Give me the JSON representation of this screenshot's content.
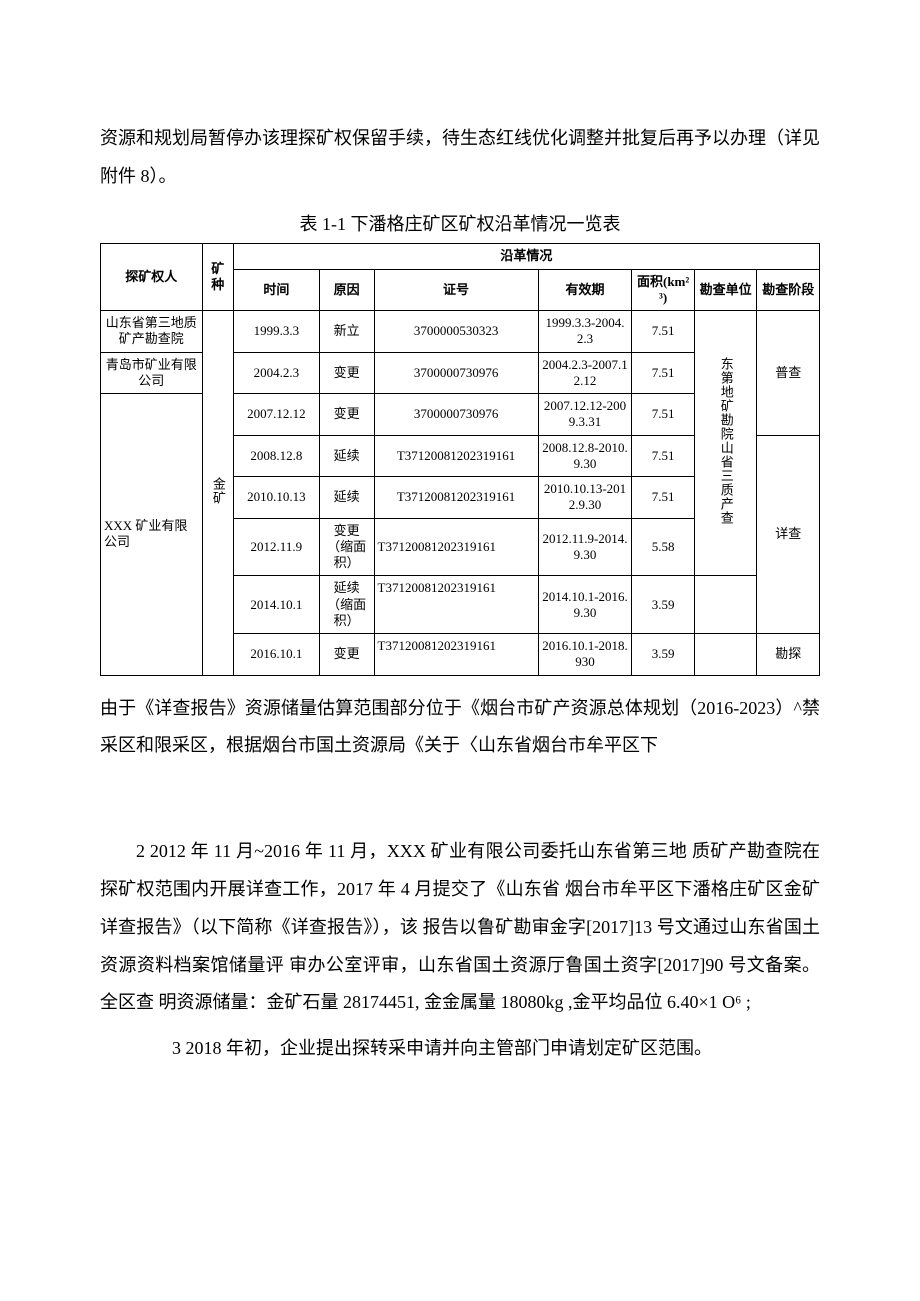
{
  "para_top": "资源和规划局暂停办该理探矿权保留手续，待生态红线优化调整并批复后再予以办理（详见附件 8）。",
  "table_caption": "表 1-1 下潘格庄矿区矿权沿革情况一览表",
  "headers": {
    "owner": "探矿权人",
    "mineral": "矿种",
    "history": "沿革情况",
    "time": "时间",
    "reason": "原因",
    "license": "证号",
    "valid": "有效期",
    "area": "面积(km²³)",
    "unit": "勘查单位",
    "stage": "勘查阶段"
  },
  "owners": {
    "o1": "山东省第三地质矿产勘查院",
    "o2": "青岛市矿业有限公司",
    "o3": "XXX 矿业有限公司"
  },
  "mineral": "金矿",
  "rows": {
    "r1": {
      "time": "1999.3.3",
      "reason": "新立",
      "license": "3700000530323",
      "valid": "1999.3.3-2004.2.3",
      "area": "7.51"
    },
    "r2": {
      "time": "2004.2.3",
      "reason": "变更",
      "license": "3700000730976",
      "valid": "2004.2.3-2007.12.12",
      "area": "7.51"
    },
    "r3": {
      "time": "2007.12.12",
      "reason": "变更",
      "license": "3700000730976",
      "valid": "2007.12.12-2009.3.31",
      "area": "7.51"
    },
    "r4": {
      "time": "2008.12.8",
      "reason": "延续",
      "license": "T37120081202319161",
      "valid": "2008.12.8-2010.9.30",
      "area": "7.51"
    },
    "r5": {
      "time": "2010.10.13",
      "reason": "延续",
      "license": "T37120081202319161",
      "valid": "2010.10.13-2012.9.30",
      "area": "7.51"
    },
    "r6": {
      "time": "2012.11.9",
      "reason": "变更（缩面积）",
      "license": "T37120081202319161",
      "valid": "2012.11.9-2014.9.30",
      "area": "5.58"
    },
    "r7": {
      "time": "2014.10.1",
      "reason": "延续（缩面积）",
      "license": "T37120081202319161",
      "valid": "2014.10.1-2016.9.30",
      "area": "3.59"
    },
    "r8": {
      "time": "2016.10.1",
      "reason": "变更",
      "license": "T37120081202319161",
      "valid": "2016.10.1-2018.930",
      "area": "3.59"
    }
  },
  "unit_text": "东第地矿勘院山省三质产查",
  "stages": {
    "s1": "普查",
    "s2": "详查",
    "s3": "勘探"
  },
  "para_after_table": "由于《详查报告》资源储量估算范围部分位于《烟台市矿产资源总体规划（2016-2023）^禁采区和限采区，根据烟台市国土资源局《关于〈山东省烟台市牟平区下",
  "para_mid": "2 2012 年 11 月~2016 年 11 月，XXX 矿业有限公司委托山东省第三地 质矿产勘查院在探矿权范围内开展详查工作，2017 年 4 月提交了《山东省 烟台市牟平区下潘格庄矿区金矿详查报告》（以下简称《详查报告》），该 报告以鲁矿勘审金字[2017]13 号文通过山东省国土资源资料档案馆储量评 审办公室评审，山东省国土资源厅鲁国土资字[2017]90 号文备案。全区查 明资源储量：金矿石量 28174451, 金金属量 18080kg ,金平均品位 6.40×1 O⁶ ;",
  "para_foot": "3 2018 年初，企业提出探转采申请并向主管部门申请划定矿区范围。"
}
